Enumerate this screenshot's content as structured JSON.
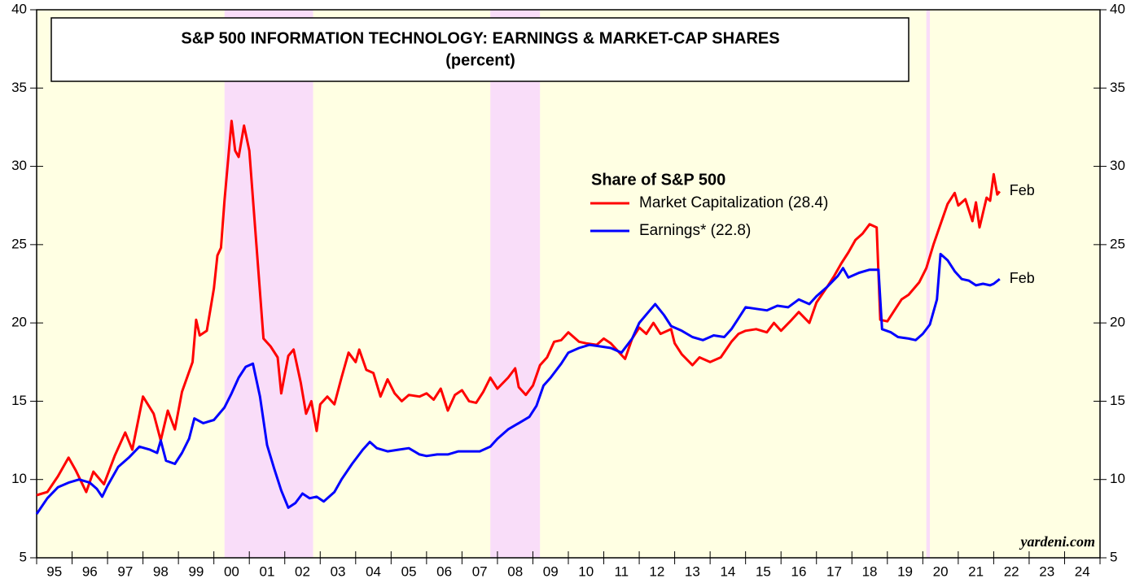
{
  "chart_data": {
    "type": "line",
    "title": "S&P 500 INFORMATION TECHNOLOGY: EARNINGS & MARKET-CAP SHARES",
    "subtitle": "(percent)",
    "legend_title": "Share of S&P 500",
    "annotations": [
      "Feb",
      "Feb",
      "yardeni.com"
    ],
    "xlim": [
      1995,
      2025
    ],
    "xticks": [
      1995,
      1996,
      1997,
      1998,
      1999,
      2000,
      2001,
      2002,
      2003,
      2004,
      2005,
      2006,
      2007,
      2008,
      2009,
      2010,
      2011,
      2012,
      2013,
      2014,
      2015,
      2016,
      2017,
      2018,
      2019,
      2020,
      2021,
      2022,
      2023,
      2024,
      2025
    ],
    "year_labels": [
      "95",
      "96",
      "97",
      "98",
      "99",
      "00",
      "01",
      "02",
      "03",
      "04",
      "05",
      "06",
      "07",
      "08",
      "09",
      "10",
      "11",
      "12",
      "13",
      "14",
      "15",
      "16",
      "17",
      "18",
      "19",
      "20",
      "21",
      "22",
      "23",
      "24"
    ],
    "ylim": [
      5,
      40
    ],
    "yticks": [
      5,
      10,
      15,
      20,
      25,
      30,
      35,
      40
    ],
    "shaded_periods": [
      [
        2000.3,
        2002.8
      ],
      [
        2007.8,
        2009.2
      ],
      [
        2020.1,
        2020.2
      ]
    ],
    "series": [
      {
        "name": "Market Capitalization (28.4)",
        "color": "#ff0000",
        "x": [
          1995.0,
          1995.3,
          1995.6,
          1995.9,
          1996.1,
          1996.4,
          1996.6,
          1996.9,
          1997.2,
          1997.5,
          1997.7,
          1998.0,
          1998.3,
          1998.5,
          1998.7,
          1998.9,
          1999.1,
          1999.4,
          1999.5,
          1999.6,
          1999.8,
          2000.0,
          2000.1,
          2000.2,
          2000.3,
          2000.5,
          2000.6,
          2000.7,
          2000.85,
          2001.0,
          2001.2,
          2001.4,
          2001.6,
          2001.8,
          2001.9,
          2002.1,
          2002.25,
          2002.45,
          2002.6,
          2002.75,
          2002.9,
          2003.0,
          2003.2,
          2003.4,
          2003.6,
          2003.8,
          2004.0,
          2004.1,
          2004.3,
          2004.5,
          2004.7,
          2004.9,
          2005.1,
          2005.3,
          2005.5,
          2005.8,
          2006.0,
          2006.2,
          2006.4,
          2006.6,
          2006.8,
          2007.0,
          2007.2,
          2007.4,
          2007.6,
          2007.8,
          2008.0,
          2008.3,
          2008.5,
          2008.6,
          2008.8,
          2009.0,
          2009.2,
          2009.4,
          2009.6,
          2009.8,
          2010.0,
          2010.3,
          2010.5,
          2010.8,
          2011.0,
          2011.2,
          2011.4,
          2011.6,
          2011.8,
          2012.0,
          2012.2,
          2012.4,
          2012.6,
          2012.9,
          2013.0,
          2013.2,
          2013.5,
          2013.7,
          2014.0,
          2014.3,
          2014.6,
          2014.8,
          2015.0,
          2015.3,
          2015.6,
          2015.8,
          2016.0,
          2016.3,
          2016.5,
          2016.8,
          2017.0,
          2017.3,
          2017.5,
          2017.7,
          2017.9,
          2018.1,
          2018.3,
          2018.5,
          2018.7,
          2018.8,
          2019.0,
          2019.2,
          2019.4,
          2019.6,
          2019.9,
          2020.1,
          2020.3,
          2020.5,
          2020.7,
          2020.9,
          2021.0,
          2021.2,
          2021.4,
          2021.5,
          2021.6,
          2021.8,
          2021.9,
          2022.0,
          2022.1,
          2022.17
        ],
        "values": [
          9.0,
          9.2,
          10.2,
          11.4,
          10.6,
          9.2,
          10.5,
          9.7,
          11.5,
          13.0,
          11.9,
          15.3,
          14.2,
          12.5,
          14.4,
          13.2,
          15.6,
          17.5,
          20.2,
          19.2,
          19.5,
          22.2,
          24.3,
          24.8,
          27.8,
          32.9,
          31.0,
          30.6,
          32.6,
          31.0,
          25.0,
          19.0,
          18.5,
          17.8,
          15.5,
          17.9,
          18.3,
          16.2,
          14.2,
          15.0,
          13.1,
          14.8,
          15.3,
          14.8,
          16.5,
          18.1,
          17.5,
          18.3,
          17.0,
          16.8,
          15.3,
          16.4,
          15.5,
          15.0,
          15.4,
          15.3,
          15.5,
          15.1,
          15.8,
          14.4,
          15.4,
          15.7,
          15.0,
          14.9,
          15.6,
          16.5,
          15.8,
          16.5,
          17.1,
          15.9,
          15.4,
          16.0,
          17.3,
          17.8,
          18.8,
          18.9,
          19.4,
          18.8,
          18.7,
          18.6,
          19.0,
          18.7,
          18.2,
          17.7,
          19.0,
          19.7,
          19.3,
          20.0,
          19.3,
          19.6,
          18.7,
          18.0,
          17.3,
          17.8,
          17.5,
          17.8,
          18.8,
          19.3,
          19.5,
          19.6,
          19.4,
          20.0,
          19.5,
          20.2,
          20.7,
          20.0,
          21.3,
          22.3,
          23.0,
          23.8,
          24.5,
          25.3,
          25.7,
          26.3,
          26.1,
          20.2,
          20.1,
          20.8,
          21.5,
          21.8,
          22.6,
          23.5,
          25.0,
          26.3,
          27.6,
          28.3,
          27.5,
          27.9,
          26.5,
          27.7,
          26.1,
          28.0,
          27.8,
          29.5,
          28.2,
          28.4
        ]
      },
      {
        "name": "Earnings* (22.8)",
        "color": "#0000ff",
        "x": [
          1995.0,
          1995.3,
          1995.6,
          1995.9,
          1996.2,
          1996.5,
          1996.7,
          1996.85,
          1997.0,
          1997.3,
          1997.6,
          1997.9,
          1998.2,
          1998.4,
          1998.5,
          1998.65,
          1998.9,
          1999.1,
          1999.3,
          1999.45,
          1999.7,
          2000.0,
          2000.3,
          2000.5,
          2000.7,
          2000.9,
          2001.1,
          2001.3,
          2001.5,
          2001.7,
          2001.9,
          2002.1,
          2002.3,
          2002.5,
          2002.7,
          2002.9,
          2003.1,
          2003.4,
          2003.6,
          2003.9,
          2004.2,
          2004.4,
          2004.6,
          2004.9,
          2005.2,
          2005.5,
          2005.8,
          2006.0,
          2006.3,
          2006.6,
          2006.9,
          2007.2,
          2007.5,
          2007.8,
          2008.0,
          2008.3,
          2008.6,
          2008.9,
          2009.1,
          2009.3,
          2009.5,
          2009.8,
          2010.0,
          2010.3,
          2010.6,
          2010.9,
          2011.2,
          2011.5,
          2011.8,
          2012.0,
          2012.3,
          2012.45,
          2012.7,
          2012.9,
          2013.2,
          2013.5,
          2013.8,
          2014.1,
          2014.4,
          2014.6,
          2014.8,
          2015.0,
          2015.3,
          2015.6,
          2015.9,
          2016.2,
          2016.5,
          2016.8,
          2017.0,
          2017.3,
          2017.6,
          2017.75,
          2017.9,
          2018.2,
          2018.5,
          2018.75,
          2018.85,
          2019.1,
          2019.3,
          2019.6,
          2019.8,
          2020.0,
          2020.2,
          2020.4,
          2020.5,
          2020.7,
          2020.9,
          2021.1,
          2021.3,
          2021.5,
          2021.7,
          2021.9,
          2022.0,
          2022.17
        ],
        "values": [
          7.8,
          8.8,
          9.5,
          9.8,
          10.0,
          9.8,
          9.4,
          8.9,
          9.6,
          10.8,
          11.4,
          12.1,
          11.9,
          11.7,
          12.5,
          11.2,
          11.0,
          11.7,
          12.6,
          13.9,
          13.6,
          13.8,
          14.6,
          15.5,
          16.5,
          17.2,
          17.4,
          15.3,
          12.2,
          10.7,
          9.3,
          8.2,
          8.5,
          9.1,
          8.8,
          8.9,
          8.6,
          9.2,
          10.0,
          11.0,
          11.9,
          12.4,
          12.0,
          11.8,
          11.9,
          12.0,
          11.6,
          11.5,
          11.6,
          11.6,
          11.8,
          11.8,
          11.8,
          12.1,
          12.6,
          13.2,
          13.6,
          14.0,
          14.7,
          16.0,
          16.5,
          17.4,
          18.1,
          18.4,
          18.6,
          18.5,
          18.4,
          18.1,
          19.0,
          20.0,
          20.8,
          21.2,
          20.5,
          19.8,
          19.5,
          19.1,
          18.9,
          19.2,
          19.1,
          19.6,
          20.3,
          21.0,
          20.9,
          20.8,
          21.1,
          21.0,
          21.5,
          21.2,
          21.7,
          22.3,
          23.0,
          23.5,
          22.9,
          23.2,
          23.4,
          23.4,
          19.6,
          19.4,
          19.1,
          19.0,
          18.9,
          19.3,
          19.9,
          21.5,
          24.4,
          24.0,
          23.3,
          22.8,
          22.7,
          22.4,
          22.5,
          22.4,
          22.5,
          22.8
        ]
      }
    ]
  }
}
